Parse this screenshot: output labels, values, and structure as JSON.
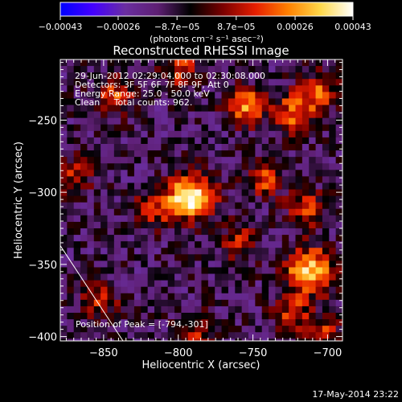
{
  "chart_data": {
    "type": "heatmap",
    "title": "Reconstructed RHESSI Image",
    "xlabel": "Heliocentric X (arcsec)",
    "ylabel": "Heliocentric Y (arcsec)",
    "xlim": [
      -879,
      -690
    ],
    "ylim": [
      -403,
      -208
    ],
    "xticks": [
      {
        "value": -850,
        "label": "−850"
      },
      {
        "value": -800,
        "label": "−800"
      },
      {
        "value": -750,
        "label": "−750"
      },
      {
        "value": -700,
        "label": "−700"
      }
    ],
    "yticks": [
      {
        "value": -250,
        "label": "−250"
      },
      {
        "value": -300,
        "label": "−300"
      },
      {
        "value": -350,
        "label": "−350"
      },
      {
        "value": -400,
        "label": "−400"
      }
    ],
    "grid": false,
    "colorbar": {
      "position": "top",
      "range": [
        -0.00043,
        0.00043
      ],
      "tick_labels": [
        "−0.00043",
        "−0.00026",
        "−8.7e−05",
        "8.7e−05",
        "0.00026",
        "0.00043"
      ],
      "unit_label": "(photons cm⁻² s⁻¹ asec⁻²)",
      "colors": [
        "#0000ff",
        "#4400ff",
        "#6a2ea0",
        "#5e1f73",
        "#000000",
        "#7a0000",
        "#e61e00",
        "#ff8000",
        "#ffd84a",
        "#ffffff"
      ]
    },
    "annotations": [
      "29-Jun-2012 02:29:04.000 to 02:30:08.000",
      "Detectors: 3F 5F 6F 7F 8F 9F, Att 0",
      "Energy Range: 25.0 - 50.0 keV",
      "Clean     Total counts: 962."
    ],
    "peak_label": "Position of Peak = [-794,-301]",
    "peak": [
      -794,
      -301
    ],
    "sources": [
      {
        "x": -794,
        "y": -301,
        "intensity": 0.00043
      },
      {
        "x": -845,
        "y": -232,
        "intensity": 0.00015
      },
      {
        "x": -800,
        "y": -212,
        "intensity": 0.00014
      },
      {
        "x": -757,
        "y": -238,
        "intensity": 0.00026
      },
      {
        "x": -725,
        "y": -243,
        "intensity": 0.00022
      },
      {
        "x": -708,
        "y": -228,
        "intensity": 0.00017
      },
      {
        "x": -745,
        "y": -288,
        "intensity": 0.00016
      },
      {
        "x": -717,
        "y": -309,
        "intensity": 0.00014
      },
      {
        "x": -819,
        "y": -309,
        "intensity": 0.00012
      },
      {
        "x": -762,
        "y": -332,
        "intensity": 9e-05
      },
      {
        "x": -714,
        "y": -352,
        "intensity": 0.00036
      },
      {
        "x": -855,
        "y": -372,
        "intensity": 0.00011
      },
      {
        "x": -727,
        "y": -380,
        "intensity": 0.00012
      },
      {
        "x": -790,
        "y": -395,
        "intensity": 0.0001
      },
      {
        "x": -705,
        "y": -395,
        "intensity": 0.00011
      },
      {
        "x": -872,
        "y": -287,
        "intensity": 0.0001
      }
    ],
    "limb_line": {
      "x": [
        -879,
        -837
      ],
      "y": [
        -337,
        -403
      ]
    }
  },
  "footer": {
    "timestamp": "17-May-2014 23:22"
  }
}
